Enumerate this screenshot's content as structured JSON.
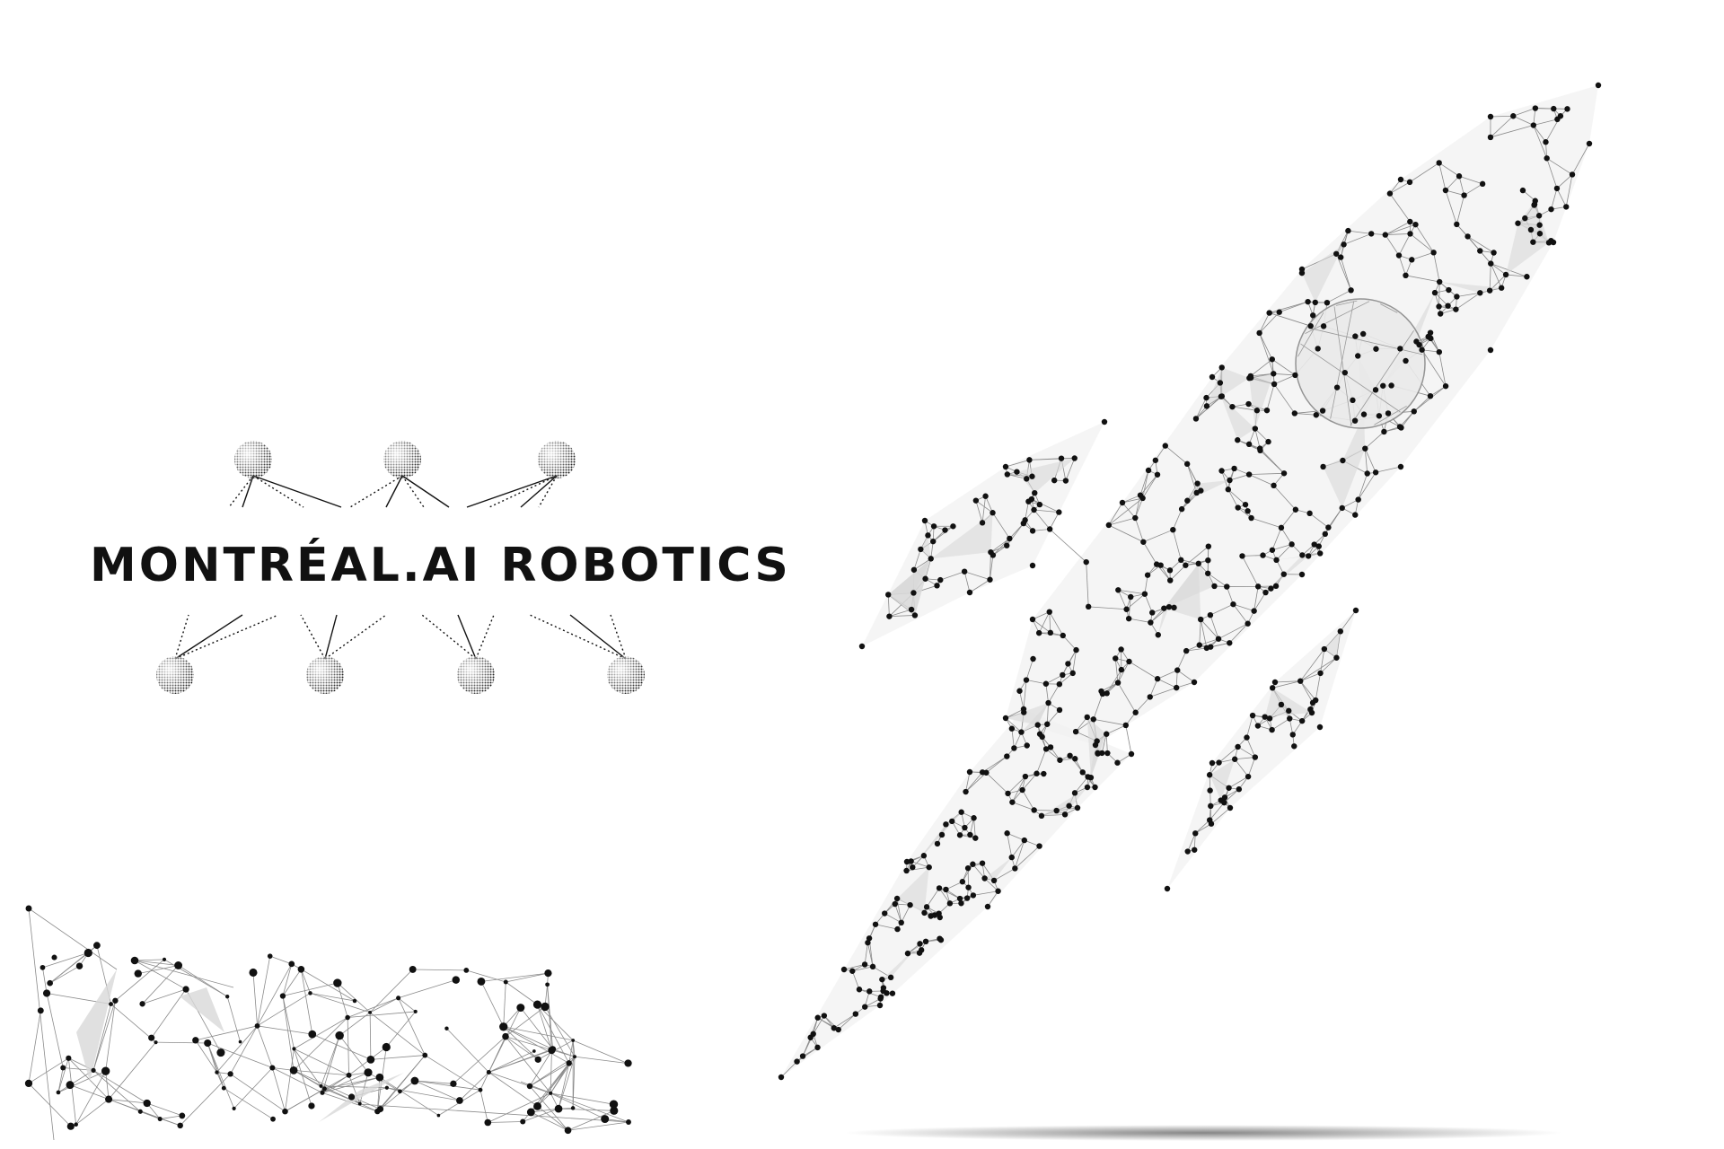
{
  "brand": {
    "name": "MONTRÉAL.AI ROBOTICS"
  },
  "colors": {
    "background": "#ffffff",
    "ink": "#111111",
    "mesh_line": "#8a8a8a",
    "mesh_fill": "#d8d8d8",
    "node": "#111111"
  },
  "illustration": {
    "rocket": "low-poly-wireframe-rocket",
    "debris": "network-particle-cluster",
    "satellites": "dotted-sphere-nodes"
  }
}
